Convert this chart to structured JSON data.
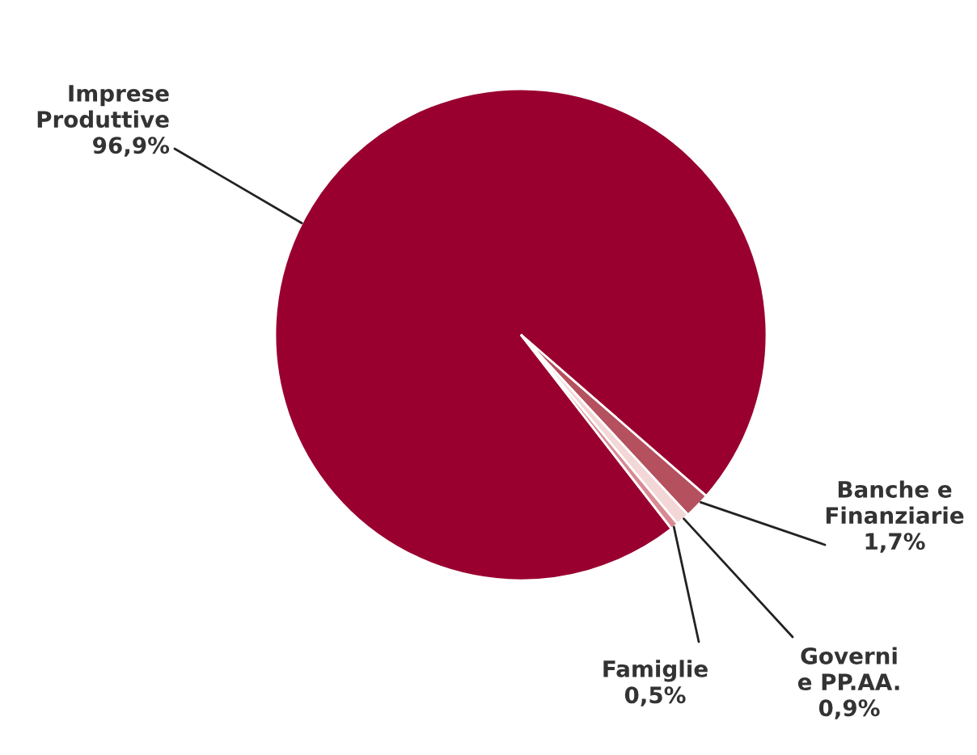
{
  "chart_data": {
    "type": "pie",
    "categories": [
      "Imprese\nProduttive",
      "Banche e\nFinanziarie",
      "Governi\ne PP.AA.",
      "Famiglie"
    ],
    "values": [
      96.9,
      1.7,
      0.9,
      0.5
    ],
    "value_labels": [
      "96,9%",
      "1,7%",
      "0,9%",
      "0,5%"
    ],
    "colors": [
      "#990030",
      "#b5505e",
      "#f3d6d6",
      "#d98a92"
    ]
  }
}
